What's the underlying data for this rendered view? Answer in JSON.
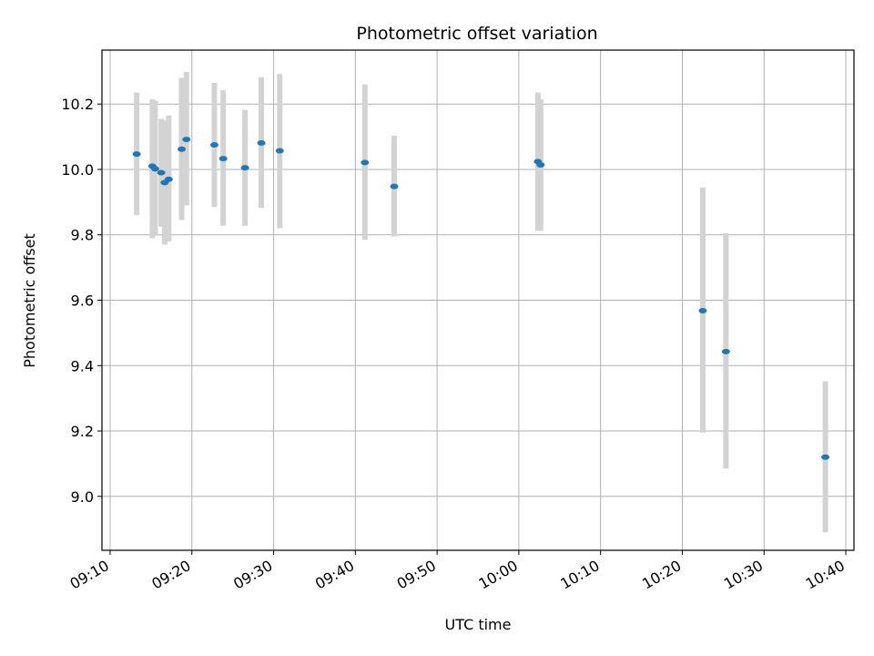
{
  "chart_data": {
    "type": "scatter",
    "title": "Photometric offset variation",
    "xlabel": "UTC time",
    "ylabel": "Photometric offset",
    "x_format": "time HH:MM",
    "xlim": [
      "09:09",
      "10:41"
    ],
    "ylim": [
      8.835,
      10.365
    ],
    "grid": true,
    "x_ticks": [
      "09:10",
      "09:20",
      "09:30",
      "09:40",
      "09:50",
      "10:00",
      "10:10",
      "10:20",
      "10:30",
      "10:40"
    ],
    "y_ticks": [
      9.0,
      9.2,
      9.4,
      9.6,
      9.8,
      10.0,
      10.2
    ],
    "error_bar_color": "#d3d3d3",
    "marker_color": "#1f77b4",
    "points": [
      {
        "x": "09:13:15",
        "y": 10.047,
        "low": 9.86,
        "high": 10.235
      },
      {
        "x": "09:15:10",
        "y": 10.01,
        "low": 9.79,
        "high": 10.215
      },
      {
        "x": "09:15:30",
        "y": 10.002,
        "low": 9.8,
        "high": 10.21
      },
      {
        "x": "09:16:15",
        "y": 9.99,
        "low": 9.825,
        "high": 10.155
      },
      {
        "x": "09:16:40",
        "y": 9.96,
        "low": 9.77,
        "high": 10.15
      },
      {
        "x": "09:17:10",
        "y": 9.97,
        "low": 9.78,
        "high": 10.165
      },
      {
        "x": "09:18:45",
        "y": 10.062,
        "low": 9.845,
        "high": 10.28
      },
      {
        "x": "09:19:20",
        "y": 10.092,
        "low": 9.89,
        "high": 10.298
      },
      {
        "x": "09:22:45",
        "y": 10.075,
        "low": 9.885,
        "high": 10.265
      },
      {
        "x": "09:23:50",
        "y": 10.033,
        "low": 9.828,
        "high": 10.242
      },
      {
        "x": "09:26:30",
        "y": 10.005,
        "low": 9.828,
        "high": 10.182
      },
      {
        "x": "09:28:30",
        "y": 10.081,
        "low": 9.882,
        "high": 10.282
      },
      {
        "x": "09:30:45",
        "y": 10.057,
        "low": 9.82,
        "high": 10.292
      },
      {
        "x": "09:41:10",
        "y": 10.021,
        "low": 9.785,
        "high": 10.26
      },
      {
        "x": "09:44:45",
        "y": 9.948,
        "low": 9.795,
        "high": 10.103
      },
      {
        "x": "10:02:20",
        "y": 10.024,
        "low": 9.812,
        "high": 10.235
      },
      {
        "x": "10:02:40",
        "y": 10.014,
        "low": 9.812,
        "high": 10.215
      },
      {
        "x": "10:22:30",
        "y": 9.568,
        "low": 9.195,
        "high": 9.945
      },
      {
        "x": "10:25:20",
        "y": 9.443,
        "low": 9.085,
        "high": 9.805
      },
      {
        "x": "10:37:30",
        "y": 9.12,
        "low": 8.89,
        "high": 9.352
      }
    ]
  }
}
